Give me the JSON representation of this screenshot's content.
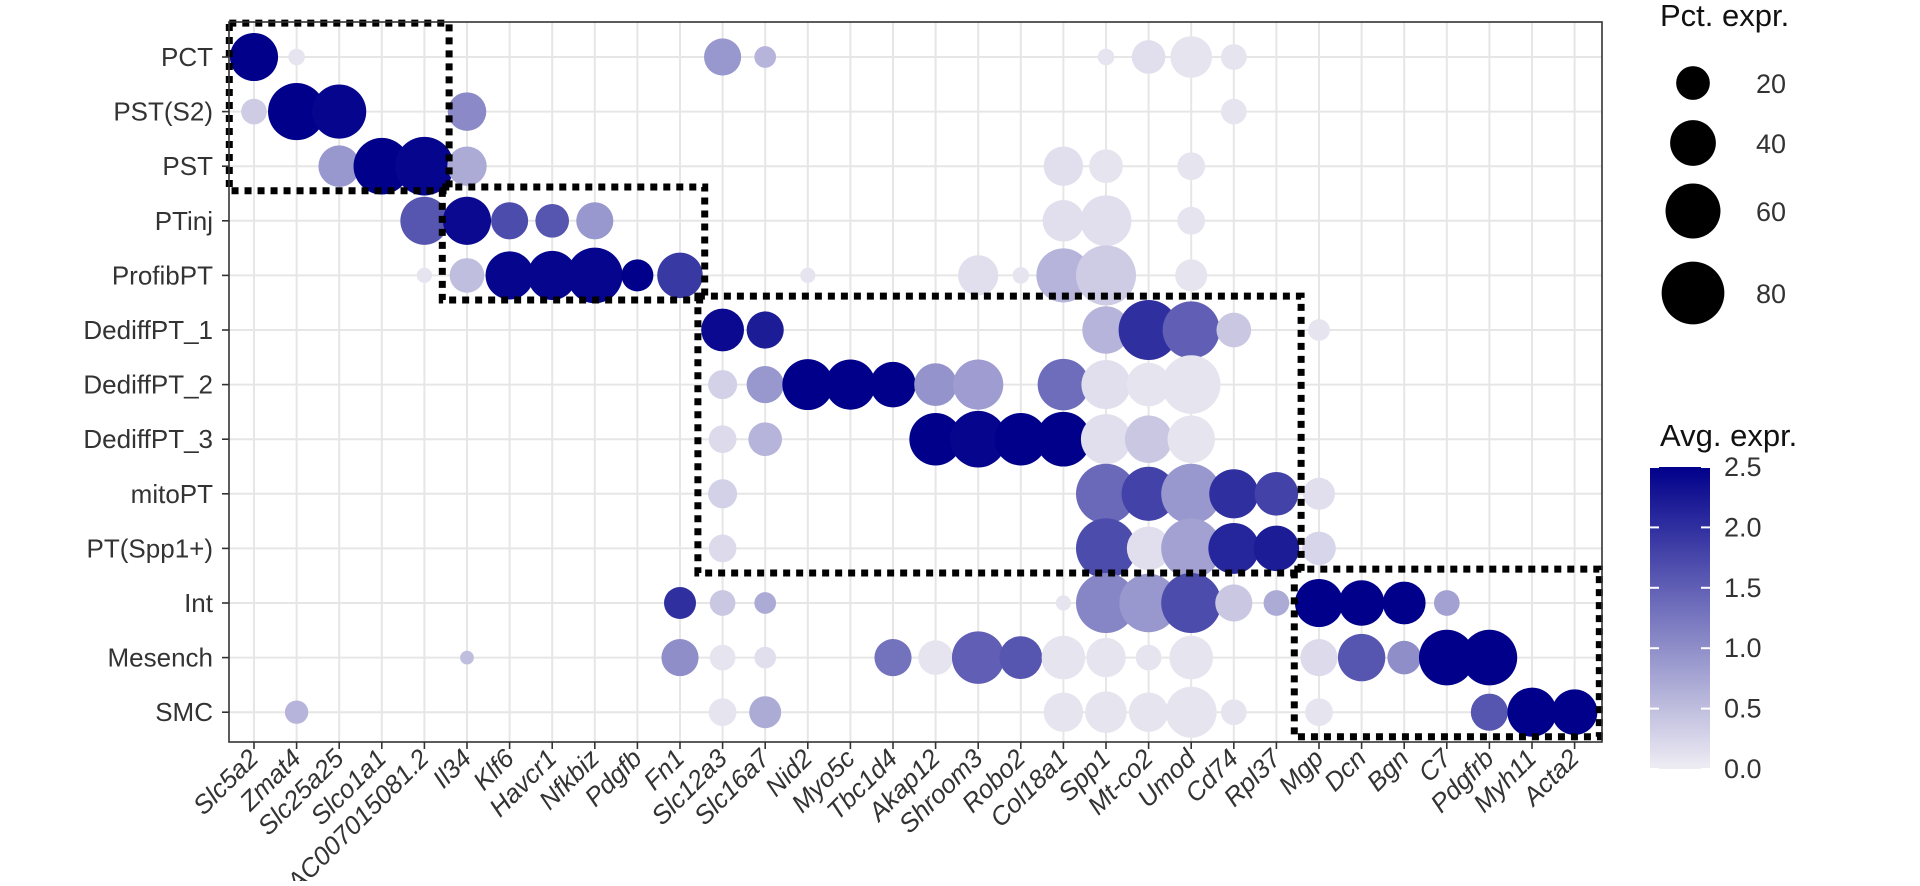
{
  "chart_data": {
    "type": "dotplot",
    "genes": [
      "Slc5a2",
      "Zmat4",
      "Slc25a25",
      "Slco1a1",
      "AC007015081.2",
      "Il34",
      "Klf6",
      "Havcr1",
      "Nfkbiz",
      "Pdgfb",
      "Fn1",
      "Slc12a3",
      "Slc16a7",
      "Nid2",
      "Myo5c",
      "Tbc1d4",
      "Akap12",
      "Shroom3",
      "Robo2",
      "Col18a1",
      "Spp1",
      "Mt-co2",
      "Umod",
      "Cd74",
      "Rpl37",
      "Mgp",
      "Dcn",
      "Bgn",
      "C7",
      "Pdgfrb",
      "Myh11",
      "Acta2"
    ],
    "cell_types": [
      "PCT",
      "PST(S2)",
      "PST",
      "PTinj",
      "ProfibPT",
      "DediffPT_1",
      "DediffPT_2",
      "DediffPT_3",
      "mitoPT",
      "PT(Spp1+)",
      "Int",
      "Mesench",
      "SMC"
    ],
    "size_legend": {
      "title": "Pct. expr.",
      "breaks": [
        20,
        40,
        60,
        80
      ]
    },
    "color_legend": {
      "title": "Avg. expr.",
      "breaks": [
        0.0,
        0.5,
        1.0,
        1.5,
        2.0,
        2.5
      ],
      "labels": [
        "0.0",
        "0.5",
        "1.0",
        "1.5",
        "2.0",
        "2.5"
      ],
      "low_color": "#EFEDF3",
      "high_color": "#00008B"
    },
    "points": [
      {
        "gene": "Slc5a2",
        "cell": "PCT",
        "pct": 62,
        "avg": 2.5
      },
      {
        "gene": "Zmat4",
        "cell": "PCT",
        "pct": 5,
        "avg": 0.1
      },
      {
        "gene": "Slc12a3",
        "cell": "PCT",
        "pct": 35,
        "avg": 0.9
      },
      {
        "gene": "Slc16a7",
        "cell": "PCT",
        "pct": 10,
        "avg": 0.6
      },
      {
        "gene": "Spp1",
        "cell": "PCT",
        "pct": 5,
        "avg": 0.1
      },
      {
        "gene": "Mt-co2",
        "cell": "PCT",
        "pct": 28,
        "avg": 0.15
      },
      {
        "gene": "Umod",
        "cell": "PCT",
        "pct": 45,
        "avg": 0.1
      },
      {
        "gene": "Cd74",
        "cell": "PCT",
        "pct": 15,
        "avg": 0.1
      },
      {
        "gene": "Slc5a2",
        "cell": "PST(S2)",
        "pct": 15,
        "avg": 0.35
      },
      {
        "gene": "Zmat4",
        "cell": "PST(S2)",
        "pct": 90,
        "avg": 2.5
      },
      {
        "gene": "Slc25a25",
        "cell": "PST(S2)",
        "pct": 80,
        "avg": 2.45
      },
      {
        "gene": "Il34",
        "cell": "PST(S2)",
        "pct": 38,
        "avg": 1.05
      },
      {
        "gene": "Cd74",
        "cell": "PST(S2)",
        "pct": 15,
        "avg": 0.1
      },
      {
        "gene": "Slc25a25",
        "cell": "PST",
        "pct": 45,
        "avg": 0.9
      },
      {
        "gene": "Slco1a1",
        "cell": "PST",
        "pct": 88,
        "avg": 2.5
      },
      {
        "gene": "AC007015081.2",
        "cell": "PST",
        "pct": 95,
        "avg": 2.45
      },
      {
        "gene": "Il34",
        "cell": "PST",
        "pct": 40,
        "avg": 0.7
      },
      {
        "gene": "Col18a1",
        "cell": "PST",
        "pct": 40,
        "avg": 0.15
      },
      {
        "gene": "Spp1",
        "cell": "PST",
        "pct": 28,
        "avg": 0.1
      },
      {
        "gene": "Umod",
        "cell": "PST",
        "pct": 18,
        "avg": 0.1
      },
      {
        "gene": "AC007015081.2",
        "cell": "PTinj",
        "pct": 62,
        "avg": 1.6
      },
      {
        "gene": "Il34",
        "cell": "PTinj",
        "pct": 62,
        "avg": 2.4
      },
      {
        "gene": "Klf6",
        "cell": "PTinj",
        "pct": 35,
        "avg": 1.7
      },
      {
        "gene": "Havcr1",
        "cell": "PTinj",
        "pct": 28,
        "avg": 1.6
      },
      {
        "gene": "Nfkbiz",
        "cell": "PTinj",
        "pct": 35,
        "avg": 0.9
      },
      {
        "gene": "Col18a1",
        "cell": "PTinj",
        "pct": 45,
        "avg": 0.15
      },
      {
        "gene": "Spp1",
        "cell": "PTinj",
        "pct": 70,
        "avg": 0.15
      },
      {
        "gene": "Umod",
        "cell": "PTinj",
        "pct": 18,
        "avg": 0.1
      },
      {
        "gene": "AC007015081.2",
        "cell": "ProfibPT",
        "pct": 4,
        "avg": 0.1
      },
      {
        "gene": "Il34",
        "cell": "ProfibPT",
        "pct": 30,
        "avg": 0.5
      },
      {
        "gene": "Klf6",
        "cell": "ProfibPT",
        "pct": 62,
        "avg": 2.45
      },
      {
        "gene": "Havcr1",
        "cell": "ProfibPT",
        "pct": 65,
        "avg": 2.45
      },
      {
        "gene": "Nfkbiz",
        "cell": "ProfibPT",
        "pct": 85,
        "avg": 2.45
      },
      {
        "gene": "Pdgfb",
        "cell": "ProfibPT",
        "pct": 25,
        "avg": 2.5
      },
      {
        "gene": "Fn1",
        "cell": "ProfibPT",
        "pct": 55,
        "avg": 1.9
      },
      {
        "gene": "Nid2",
        "cell": "ProfibPT",
        "pct": 4,
        "avg": 0.1
      },
      {
        "gene": "Shroom3",
        "cell": "ProfibPT",
        "pct": 42,
        "avg": 0.15
      },
      {
        "gene": "Robo2",
        "cell": "ProfibPT",
        "pct": 5,
        "avg": 0.1
      },
      {
        "gene": "Col18a1",
        "cell": "ProfibPT",
        "pct": 80,
        "avg": 0.6
      },
      {
        "gene": "Spp1",
        "cell": "ProfibPT",
        "pct": 100,
        "avg": 0.35
      },
      {
        "gene": "Umod",
        "cell": "ProfibPT",
        "pct": 25,
        "avg": 0.1
      },
      {
        "gene": "Slc12a3",
        "cell": "DediffPT_1",
        "pct": 48,
        "avg": 2.4
      },
      {
        "gene": "Slc16a7",
        "cell": "DediffPT_1",
        "pct": 35,
        "avg": 2.2
      },
      {
        "gene": "Spp1",
        "cell": "DediffPT_1",
        "pct": 60,
        "avg": 0.6
      },
      {
        "gene": "Mt-co2",
        "cell": "DediffPT_1",
        "pct": 100,
        "avg": 2.0
      },
      {
        "gene": "Umod",
        "cell": "DediffPT_1",
        "pct": 90,
        "avg": 1.5
      },
      {
        "gene": "Cd74",
        "cell": "DediffPT_1",
        "pct": 30,
        "avg": 0.4
      },
      {
        "gene": "Mgp",
        "cell": "DediffPT_1",
        "pct": 10,
        "avg": 0.1
      },
      {
        "gene": "Slc12a3",
        "cell": "DediffPT_2",
        "pct": 20,
        "avg": 0.3
      },
      {
        "gene": "Slc16a7",
        "cell": "DediffPT_2",
        "pct": 35,
        "avg": 0.9
      },
      {
        "gene": "Nid2",
        "cell": "DediffPT_2",
        "pct": 70,
        "avg": 2.5
      },
      {
        "gene": "Myo5c",
        "cell": "DediffPT_2",
        "pct": 68,
        "avg": 2.5
      },
      {
        "gene": "Tbc1d4",
        "cell": "DediffPT_2",
        "pct": 55,
        "avg": 2.5
      },
      {
        "gene": "Akap12",
        "cell": "DediffPT_2",
        "pct": 48,
        "avg": 0.95
      },
      {
        "gene": "Shroom3",
        "cell": "DediffPT_2",
        "pct": 68,
        "avg": 0.85
      },
      {
        "gene": "Col18a1",
        "cell": "DediffPT_2",
        "pct": 72,
        "avg": 1.35
      },
      {
        "gene": "Spp1",
        "cell": "DediffPT_2",
        "pct": 65,
        "avg": 0.15
      },
      {
        "gene": "Mt-co2",
        "cell": "DediffPT_2",
        "pct": 50,
        "avg": 0.1
      },
      {
        "gene": "Umod",
        "cell": "DediffPT_2",
        "pct": 95,
        "avg": 0.1
      },
      {
        "gene": "Slc12a3",
        "cell": "DediffPT_3",
        "pct": 18,
        "avg": 0.2
      },
      {
        "gene": "Slc16a7",
        "cell": "DediffPT_3",
        "pct": 28,
        "avg": 0.6
      },
      {
        "gene": "Akap12",
        "cell": "DediffPT_3",
        "pct": 75,
        "avg": 2.5
      },
      {
        "gene": "Shroom3",
        "cell": "DediffPT_3",
        "pct": 88,
        "avg": 2.45
      },
      {
        "gene": "Robo2",
        "cell": "DediffPT_3",
        "pct": 75,
        "avg": 2.5
      },
      {
        "gene": "Col18a1",
        "cell": "DediffPT_3",
        "pct": 82,
        "avg": 2.5
      },
      {
        "gene": "Spp1",
        "cell": "DediffPT_3",
        "pct": 68,
        "avg": 0.15
      },
      {
        "gene": "Mt-co2",
        "cell": "DediffPT_3",
        "pct": 60,
        "avg": 0.4
      },
      {
        "gene": "Umod",
        "cell": "DediffPT_3",
        "pct": 60,
        "avg": 0.1
      },
      {
        "gene": "Slc12a3",
        "cell": "mitoPT",
        "pct": 20,
        "avg": 0.3
      },
      {
        "gene": "Spp1",
        "cell": "mitoPT",
        "pct": 100,
        "avg": 1.4
      },
      {
        "gene": "Mt-co2",
        "cell": "mitoPT",
        "pct": 80,
        "avg": 1.8
      },
      {
        "gene": "Umod",
        "cell": "mitoPT",
        "pct": 100,
        "avg": 0.9
      },
      {
        "gene": "Cd74",
        "cell": "mitoPT",
        "pct": 65,
        "avg": 2.0
      },
      {
        "gene": "Rpl37",
        "cell": "mitoPT",
        "pct": 50,
        "avg": 1.8
      },
      {
        "gene": "Mgp",
        "cell": "mitoPT",
        "pct": 25,
        "avg": 0.15
      },
      {
        "gene": "Slc12a3",
        "cell": "PT(Spp1+)",
        "pct": 18,
        "avg": 0.2
      },
      {
        "gene": "Spp1",
        "cell": "PT(Spp1+)",
        "pct": 100,
        "avg": 1.7
      },
      {
        "gene": "Mt-co2",
        "cell": "PT(Spp1+)",
        "pct": 50,
        "avg": 0.15
      },
      {
        "gene": "Umod",
        "cell": "PT(Spp1+)",
        "pct": 100,
        "avg": 0.8
      },
      {
        "gene": "Cd74",
        "cell": "PT(Spp1+)",
        "pct": 70,
        "avg": 2.1
      },
      {
        "gene": "Rpl37",
        "cell": "PT(Spp1+)",
        "pct": 55,
        "avg": 2.2
      },
      {
        "gene": "Mgp",
        "cell": "PT(Spp1+)",
        "pct": 28,
        "avg": 0.25
      },
      {
        "gene": "Fn1",
        "cell": "Int",
        "pct": 25,
        "avg": 2.0
      },
      {
        "gene": "Slc12a3",
        "cell": "Int",
        "pct": 15,
        "avg": 0.4
      },
      {
        "gene": "Slc16a7",
        "cell": "Int",
        "pct": 10,
        "avg": 0.7
      },
      {
        "gene": "Col18a1",
        "cell": "Int",
        "pct": 4,
        "avg": 0.1
      },
      {
        "gene": "Spp1",
        "cell": "Int",
        "pct": 100,
        "avg": 1.1
      },
      {
        "gene": "Mt-co2",
        "cell": "Int",
        "pct": 95,
        "avg": 0.9
      },
      {
        "gene": "Umod",
        "cell": "Int",
        "pct": 100,
        "avg": 1.7
      },
      {
        "gene": "Cd74",
        "cell": "Int",
        "pct": 35,
        "avg": 0.4
      },
      {
        "gene": "Rpl37",
        "cell": "Int",
        "pct": 15,
        "avg": 0.7
      },
      {
        "gene": "Mgp",
        "cell": "Int",
        "pct": 62,
        "avg": 2.5
      },
      {
        "gene": "Dcn",
        "cell": "Int",
        "pct": 55,
        "avg": 2.5
      },
      {
        "gene": "Bgn",
        "cell": "Int",
        "pct": 48,
        "avg": 2.5
      },
      {
        "gene": "C7",
        "cell": "Int",
        "pct": 15,
        "avg": 0.8
      },
      {
        "gene": "Il34",
        "cell": "Mesench",
        "pct": 3,
        "avg": 0.5
      },
      {
        "gene": "Fn1",
        "cell": "Mesench",
        "pct": 35,
        "avg": 1.0
      },
      {
        "gene": "Slc12a3",
        "cell": "Mesench",
        "pct": 15,
        "avg": 0.1
      },
      {
        "gene": "Slc16a7",
        "cell": "Mesench",
        "pct": 10,
        "avg": 0.15
      },
      {
        "gene": "Tbc1d4",
        "cell": "Mesench",
        "pct": 35,
        "avg": 1.3
      },
      {
        "gene": "Akap12",
        "cell": "Mesench",
        "pct": 30,
        "avg": 0.1
      },
      {
        "gene": "Shroom3",
        "cell": "Mesench",
        "pct": 75,
        "avg": 1.5
      },
      {
        "gene": "Robo2",
        "cell": "Mesench",
        "pct": 48,
        "avg": 1.6
      },
      {
        "gene": "Col18a1",
        "cell": "Mesench",
        "pct": 50,
        "avg": 0.1
      },
      {
        "gene": "Spp1",
        "cell": "Mesench",
        "pct": 40,
        "avg": 0.1
      },
      {
        "gene": "Mt-co2",
        "cell": "Mesench",
        "pct": 15,
        "avg": 0.1
      },
      {
        "gene": "Umod",
        "cell": "Mesench",
        "pct": 50,
        "avg": 0.1
      },
      {
        "gene": "Mgp",
        "cell": "Mesench",
        "pct": 35,
        "avg": 0.2
      },
      {
        "gene": "Dcn",
        "cell": "Mesench",
        "pct": 60,
        "avg": 1.6
      },
      {
        "gene": "Bgn",
        "cell": "Mesench",
        "pct": 28,
        "avg": 1.0
      },
      {
        "gene": "C7",
        "cell": "Mesench",
        "pct": 85,
        "avg": 2.5
      },
      {
        "gene": "Pdgfrb",
        "cell": "Mesench",
        "pct": 85,
        "avg": 2.5
      },
      {
        "gene": "Zmat4",
        "cell": "SMC",
        "pct": 12,
        "avg": 0.6
      },
      {
        "gene": "Slc12a3",
        "cell": "SMC",
        "pct": 18,
        "avg": 0.1
      },
      {
        "gene": "Slc16a7",
        "cell": "SMC",
        "pct": 25,
        "avg": 0.7
      },
      {
        "gene": "Col18a1",
        "cell": "SMC",
        "pct": 40,
        "avg": 0.1
      },
      {
        "gene": "Spp1",
        "cell": "SMC",
        "pct": 45,
        "avg": 0.1
      },
      {
        "gene": "Mt-co2",
        "cell": "SMC",
        "pct": 40,
        "avg": 0.1
      },
      {
        "gene": "Umod",
        "cell": "SMC",
        "pct": 70,
        "avg": 0.1
      },
      {
        "gene": "Cd74",
        "cell": "SMC",
        "pct": 15,
        "avg": 0.1
      },
      {
        "gene": "Mgp",
        "cell": "SMC",
        "pct": 18,
        "avg": 0.1
      },
      {
        "gene": "Pdgfrb",
        "cell": "SMC",
        "pct": 35,
        "avg": 1.6
      },
      {
        "gene": "Myh11",
        "cell": "SMC",
        "pct": 65,
        "avg": 2.5
      },
      {
        "gene": "Acta2",
        "cell": "SMC",
        "pct": 55,
        "avg": 2.5
      }
    ],
    "highlight_boxes": [
      {
        "genes": [
          "Slc5a2",
          "AC007015081.2"
        ],
        "cells": [
          "PCT",
          "PST"
        ]
      },
      {
        "genes": [
          "Il34",
          "Fn1"
        ],
        "cells": [
          "PTinj",
          "ProfibPT"
        ]
      },
      {
        "genes": [
          "Slc12a3",
          "Rpl37"
        ],
        "cells": [
          "DediffPT_1",
          "PT(Spp1+)"
        ]
      },
      {
        "genes": [
          "Mgp",
          "Acta2"
        ],
        "cells": [
          "Int",
          "SMC"
        ]
      }
    ]
  }
}
